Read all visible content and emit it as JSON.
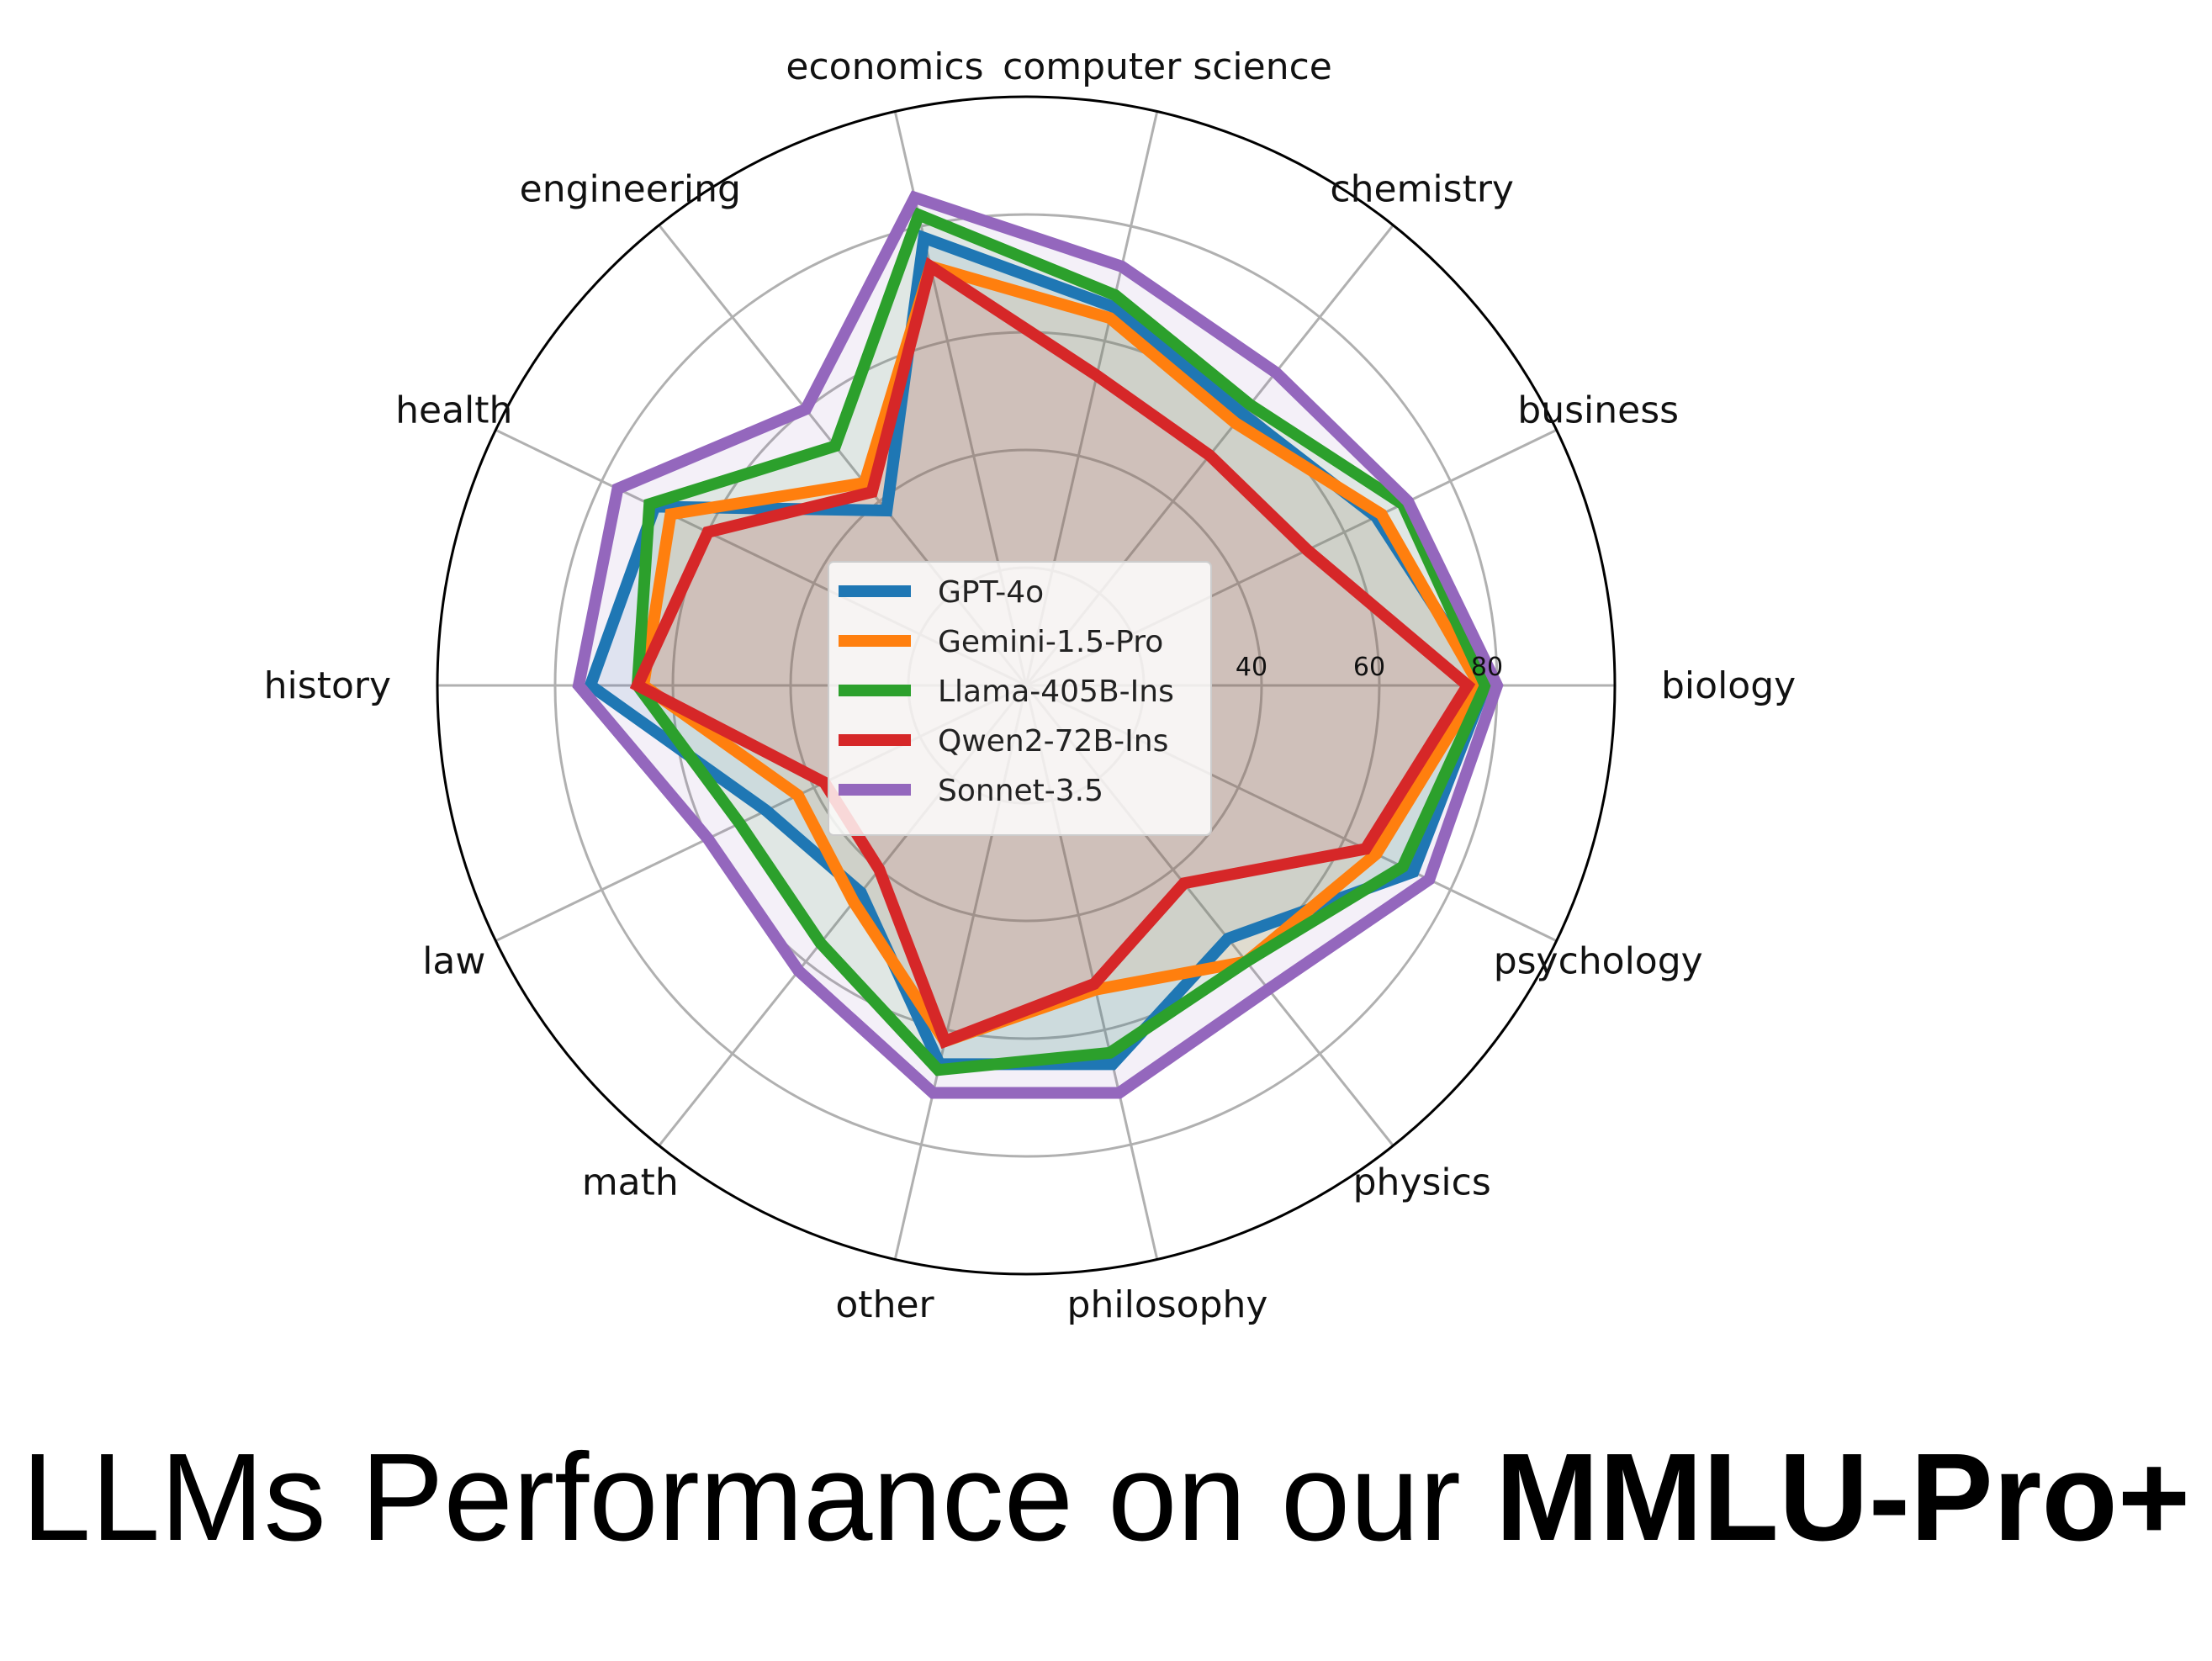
{
  "caption": {
    "prefix": "LLMs Performance on our ",
    "bold": "MMLU-Pro+"
  },
  "chart_data": {
    "type": "radar",
    "title": "",
    "categories": [
      "biology",
      "business",
      "chemistry",
      "computer science",
      "economics",
      "engineering",
      "health",
      "history",
      "law",
      "math",
      "other",
      "philosophy",
      "physics",
      "psychology"
    ],
    "radial_ticks": [
      40,
      60,
      80
    ],
    "rlim": [
      0,
      100
    ],
    "grid": true,
    "legend": "center",
    "series": [
      {
        "name": "GPT-4o",
        "color": "#1f77b4",
        "values": [
          78,
          66,
          59,
          66,
          78,
          38,
          70,
          74,
          49,
          45,
          66,
          66,
          55,
          73
        ]
      },
      {
        "name": "Gemini-1.5-Pro",
        "color": "#ff7f0e",
        "values": [
          77,
          67,
          57,
          64,
          73,
          44,
          67,
          65,
          43,
          47,
          62,
          53,
          60,
          66
        ]
      },
      {
        "name": "Llama-405B-Ins",
        "color": "#2ca02c",
        "values": [
          78,
          71,
          61,
          68,
          82,
          52,
          71,
          66,
          54,
          56,
          67,
          64,
          60,
          71
        ]
      },
      {
        "name": "Qwen2-72B-Ins",
        "color": "#d62728",
        "values": [
          75,
          53,
          50,
          54,
          73,
          42,
          60,
          66,
          38,
          40,
          62,
          52,
          43,
          64
        ]
      },
      {
        "name": "Sonnet-3.5",
        "color": "#9467bd",
        "values": [
          80,
          72,
          68,
          73,
          85,
          60,
          77,
          76,
          60,
          62,
          71,
          71,
          66,
          76
        ]
      }
    ]
  }
}
